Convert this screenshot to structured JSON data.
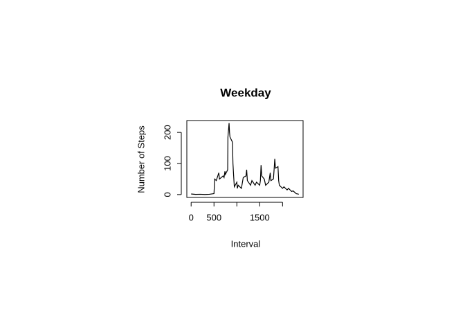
{
  "chart_data": {
    "type": "line",
    "title": "Weekday",
    "x_label": "Interval",
    "y_label": "Number of Steps",
    "x": [
      0,
      100,
      200,
      300,
      400,
      500,
      515,
      550,
      605,
      620,
      700,
      720,
      740,
      750,
      800,
      805,
      830,
      840,
      850,
      900,
      905,
      915,
      930,
      945,
      1000,
      1010,
      1030,
      1100,
      1140,
      1200,
      1215,
      1230,
      1300,
      1330,
      1400,
      1430,
      1500,
      1515,
      1530,
      1545,
      1600,
      1630,
      1700,
      1730,
      1745,
      1800,
      1815,
      1830,
      1845,
      1900,
      1915,
      1930,
      2000,
      2030,
      2100,
      2130,
      2200,
      2230,
      2300,
      2330,
      2355
    ],
    "series": [
      {
        "color": "#000000",
        "values": [
          2,
          0.5,
          1,
          0.3,
          1,
          3,
          50,
          45,
          70,
          50,
          60,
          55,
          75,
          65,
          80,
          185,
          230,
          200,
          185,
          170,
          165,
          100,
          60,
          25,
          40,
          20,
          30,
          20,
          55,
          60,
          80,
          45,
          30,
          45,
          30,
          40,
          30,
          45,
          95,
          60,
          50,
          30,
          40,
          70,
          45,
          50,
          80,
          115,
          85,
          90,
          45,
          30,
          20,
          25,
          15,
          20,
          10,
          12,
          3,
          2,
          1
        ]
      }
    ],
    "xlim": [
      -94.2,
      2449.2
    ],
    "ylim": [
      -9.2,
      238.2
    ],
    "xticks": [
      0,
      500,
      {
        "value": 1000,
        "label": null
      },
      1500,
      {
        "value": 2000,
        "label": null
      }
    ],
    "yticks": [
      0,
      100,
      200
    ]
  }
}
